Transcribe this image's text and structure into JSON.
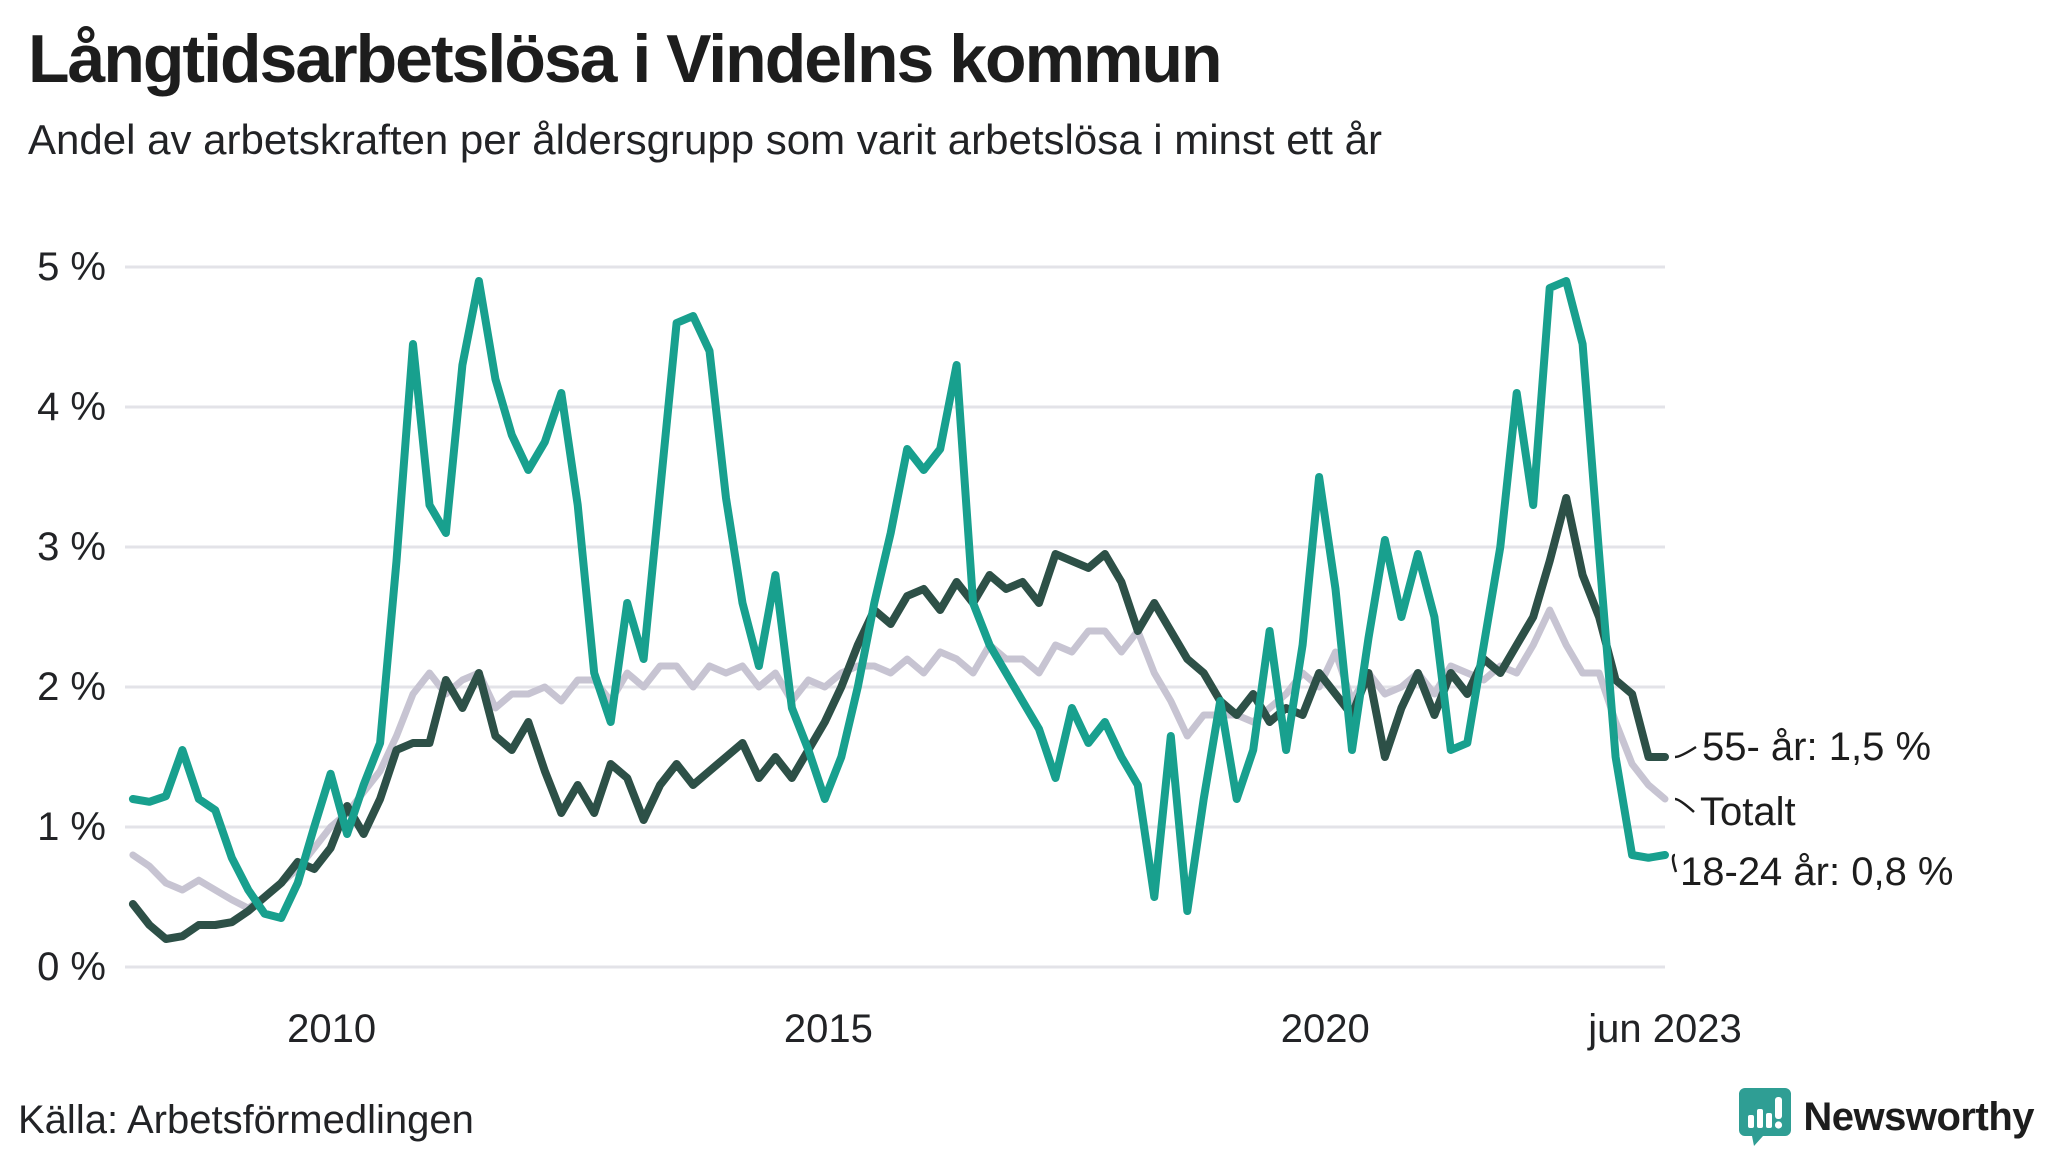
{
  "header": {
    "title": "Långtidsarbetslösa i Vindelns kommun",
    "subtitle": "Andel av arbetskraften per åldersgrupp som varit arbetslösa i minst ett år"
  },
  "footer": {
    "source": "Källa: Arbetsförmedlingen",
    "brand": "Newsworthy"
  },
  "colors": {
    "teal": "#18a08e",
    "dark_green": "#2d5047",
    "light_gray": "#c7c4d2",
    "grid": "#e3e3e8",
    "text": "#1d1d1d",
    "logo_teal": "#2f9e94"
  },
  "chart_data": {
    "type": "line",
    "title": "Långtidsarbetslösa i Vindelns kommun",
    "subtitle": "Andel av arbetskraften per åldersgrupp som varit arbetslösa i minst ett år",
    "x_unit": "year (monthly series, Jan 2008 – Jun 2023)",
    "y_unit": "percent of labour force",
    "x_start": 2008.0,
    "x_end": 2023.42,
    "xlim": [
      2007.92,
      2023.42
    ],
    "ylim": [
      0,
      5
    ],
    "grid": true,
    "yticks": [
      {
        "label": "5 %",
        "value": 5
      },
      {
        "label": "4 %",
        "value": 4
      },
      {
        "label": "3 %",
        "value": 3
      },
      {
        "label": "2 %",
        "value": 2
      },
      {
        "label": "1 %",
        "value": 1
      },
      {
        "label": "0 %",
        "value": 0
      }
    ],
    "xticks": [
      {
        "label": "2010",
        "value": 2010
      },
      {
        "label": "2015",
        "value": 2015
      },
      {
        "label": "2020",
        "value": 2020
      },
      {
        "label": "jun 2023",
        "value": 2023.42
      }
    ],
    "series": [
      {
        "name": "Totalt",
        "color": "#c7c4d2",
        "stroke_width": 7,
        "values": [
          0.8,
          0.72,
          0.6,
          0.55,
          0.62,
          0.55,
          0.48,
          0.42,
          0.5,
          0.6,
          0.7,
          0.85,
          1.0,
          1.1,
          1.25,
          1.4,
          1.65,
          1.95,
          2.1,
          1.95,
          2.05,
          2.1,
          1.85,
          1.95,
          1.95,
          2.0,
          1.9,
          2.05,
          2.05,
          1.9,
          2.1,
          2.0,
          2.15,
          2.15,
          2.0,
          2.15,
          2.1,
          2.15,
          2.0,
          2.1,
          1.9,
          2.05,
          2.0,
          2.1,
          2.15,
          2.15,
          2.1,
          2.2,
          2.1,
          2.25,
          2.2,
          2.1,
          2.3,
          2.2,
          2.2,
          2.1,
          2.3,
          2.25,
          2.4,
          2.4,
          2.25,
          2.4,
          2.1,
          1.9,
          1.65,
          1.8,
          1.8,
          1.8,
          1.75,
          1.85,
          1.95,
          2.1,
          2.0,
          2.25,
          1.9,
          2.1,
          1.95,
          2.0,
          2.1,
          1.95,
          2.15,
          2.1,
          2.05,
          2.15,
          2.1,
          2.3,
          2.55,
          2.3,
          2.1,
          2.1,
          1.75,
          1.45,
          1.3,
          1.2
        ]
      },
      {
        "name": "55- år",
        "color": "#2d5047",
        "stroke_width": 8,
        "values": [
          0.45,
          0.3,
          0.2,
          0.22,
          0.3,
          0.3,
          0.32,
          0.4,
          0.5,
          0.6,
          0.75,
          0.7,
          0.85,
          1.15,
          0.95,
          1.2,
          1.55,
          1.6,
          1.6,
          2.05,
          1.85,
          2.1,
          1.65,
          1.55,
          1.75,
          1.4,
          1.1,
          1.3,
          1.1,
          1.45,
          1.35,
          1.05,
          1.3,
          1.45,
          1.3,
          1.4,
          1.5,
          1.6,
          1.35,
          1.5,
          1.35,
          1.55,
          1.75,
          2.0,
          2.3,
          2.55,
          2.45,
          2.65,
          2.7,
          2.55,
          2.75,
          2.6,
          2.8,
          2.7,
          2.75,
          2.6,
          2.95,
          2.9,
          2.85,
          2.95,
          2.75,
          2.4,
          2.6,
          2.4,
          2.2,
          2.1,
          1.9,
          1.8,
          1.95,
          1.75,
          1.85,
          1.8,
          2.1,
          1.95,
          1.8,
          2.1,
          1.5,
          1.85,
          2.1,
          1.8,
          2.1,
          1.95,
          2.2,
          2.1,
          2.3,
          2.5,
          2.9,
          3.35,
          2.8,
          2.5,
          2.05,
          1.95,
          1.5,
          1.5
        ]
      },
      {
        "name": "18-24 år",
        "color": "#18a08e",
        "stroke_width": 8,
        "values": [
          1.2,
          1.18,
          1.22,
          1.55,
          1.2,
          1.12,
          0.78,
          0.55,
          0.38,
          0.35,
          0.6,
          1.0,
          1.38,
          0.95,
          1.3,
          1.6,
          2.9,
          4.45,
          3.3,
          3.1,
          4.3,
          4.9,
          4.2,
          3.8,
          3.55,
          3.75,
          4.1,
          3.3,
          2.1,
          1.75,
          2.6,
          2.2,
          3.4,
          4.6,
          4.65,
          4.4,
          3.35,
          2.6,
          2.15,
          2.8,
          1.85,
          1.55,
          1.2,
          1.5,
          2.0,
          2.6,
          3.1,
          3.7,
          3.55,
          3.7,
          4.3,
          2.6,
          2.3,
          2.1,
          1.9,
          1.7,
          1.35,
          1.85,
          1.6,
          1.75,
          1.5,
          1.3,
          0.5,
          1.65,
          0.4,
          1.2,
          1.9,
          1.2,
          1.55,
          2.4,
          1.55,
          2.3,
          3.5,
          2.7,
          1.55,
          2.35,
          3.05,
          2.5,
          2.95,
          2.5,
          1.55,
          1.6,
          2.3,
          3.0,
          4.1,
          3.3,
          4.85,
          4.9,
          4.45,
          2.95,
          1.5,
          0.8,
          0.78,
          0.8
        ]
      }
    ],
    "end_labels": [
      {
        "text": "55- år: 1,5 %",
        "series": "55- år",
        "value": 1.5
      },
      {
        "text": "Totalt",
        "series": "Totalt",
        "value": 1.2
      },
      {
        "text": "18-24 år: 0,8 %",
        "series": "18-24 år",
        "value": 0.8
      }
    ],
    "legend_position": "right-end-labels"
  }
}
